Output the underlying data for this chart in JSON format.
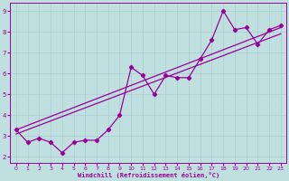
{
  "xlabel": "Windchill (Refroidissement éolien,°C)",
  "bg_color": "#c0e0e0",
  "line_color": "#990099",
  "grid_color": "#aacccc",
  "axis_label_color": "#990099",
  "tick_color": "#990099",
  "xlim": [
    -0.5,
    23.5
  ],
  "ylim": [
    1.7,
    9.4
  ],
  "xticks": [
    0,
    1,
    2,
    3,
    4,
    5,
    6,
    7,
    8,
    9,
    10,
    11,
    12,
    13,
    14,
    15,
    16,
    17,
    18,
    19,
    20,
    21,
    22,
    23
  ],
  "yticks": [
    2,
    3,
    4,
    5,
    6,
    7,
    8,
    9
  ],
  "data_x": [
    0,
    1,
    2,
    3,
    4,
    5,
    6,
    7,
    8,
    9,
    10,
    11,
    12,
    13,
    14,
    15,
    16,
    17,
    18,
    19,
    20,
    21,
    22,
    23
  ],
  "data_y": [
    3.3,
    2.7,
    2.9,
    2.7,
    2.2,
    2.7,
    2.8,
    2.8,
    3.3,
    4.0,
    6.3,
    5.9,
    5.0,
    5.9,
    5.8,
    5.8,
    6.7,
    7.6,
    9.0,
    8.1,
    8.2,
    7.4,
    8.1,
    8.3
  ],
  "trend1_x": [
    0,
    23
  ],
  "trend1_y": [
    3.1,
    7.9
  ],
  "trend2_x": [
    0,
    23
  ],
  "trend2_y": [
    3.3,
    8.2
  ]
}
